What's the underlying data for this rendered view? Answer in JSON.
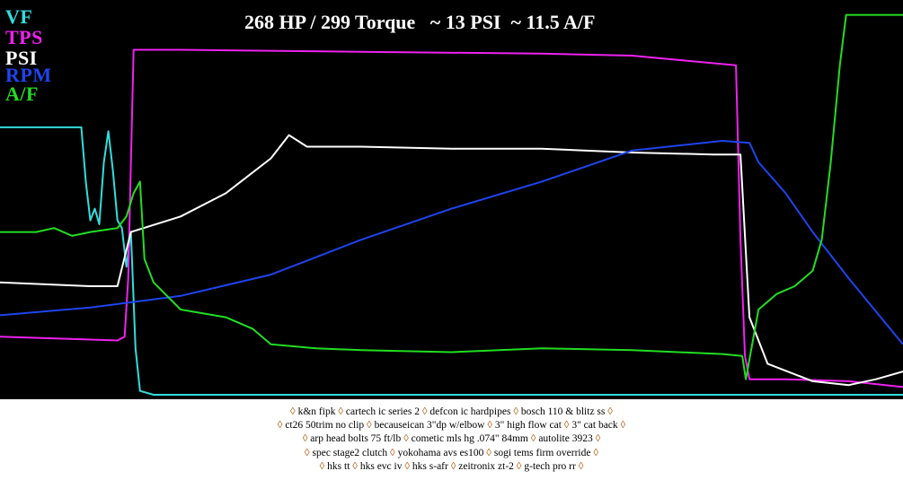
{
  "colors": {
    "background": "#000000",
    "vf": "#33dddd",
    "tps": "#ee22ee",
    "psi": "#ffffff",
    "rpm": "#1f44ee",
    "af": "#22dd22",
    "diamond": "#b5651d"
  },
  "legend": [
    {
      "label": "VF",
      "color": "#33dddd"
    },
    {
      "label": "TPS",
      "color": "#ee22ee"
    },
    {
      "label": "PSI",
      "color": "#ffffff"
    },
    {
      "label": "RPM",
      "color": "#1f44ee"
    },
    {
      "label": "A/F",
      "color": "#22dd22"
    }
  ],
  "chart_data": {
    "type": "line",
    "title": "268 HP / 299 Torque   ~ 13 PSI  ~ 11.5 A/F",
    "xlabel": "",
    "ylabel": "",
    "xlim": [
      0,
      1000
    ],
    "ylim": [
      0,
      100
    ],
    "grid": false,
    "legend_position": "top-left",
    "series": [
      {
        "name": "VF",
        "color": "#33dddd",
        "x": [
          0,
          90,
          95,
          100,
          105,
          110,
          115,
          120,
          125,
          130,
          135,
          140,
          145,
          150,
          155,
          170,
          400,
          700,
          1000
        ],
        "y": [
          69,
          69,
          55,
          45,
          48,
          44,
          60,
          68,
          58,
          45,
          43,
          33,
          42,
          12,
          1,
          0,
          0,
          0,
          0
        ]
      },
      {
        "name": "TPS",
        "color": "#ee22ee",
        "x": [
          0,
          130,
          138,
          142,
          145,
          148,
          200,
          400,
          600,
          700,
          815,
          820,
          825,
          830,
          870,
          940,
          1000
        ],
        "y": [
          15,
          14,
          15,
          30,
          60,
          89,
          89,
          88.5,
          88,
          87.5,
          85,
          40,
          10,
          4,
          4,
          3.5,
          2
        ]
      },
      {
        "name": "PSI",
        "color": "#ffffff",
        "x": [
          0,
          100,
          130,
          145,
          200,
          250,
          300,
          320,
          340,
          400,
          500,
          600,
          700,
          790,
          820,
          830,
          850,
          900,
          940,
          970,
          1000
        ],
        "y": [
          29,
          28,
          28,
          42,
          46,
          52,
          61,
          67,
          64,
          64,
          63.5,
          63.5,
          62.5,
          62,
          62,
          20,
          8,
          3.5,
          2.5,
          4,
          6
        ]
      },
      {
        "name": "RPM",
        "color": "#1f44ee",
        "x": [
          0,
          100,
          200,
          300,
          400,
          500,
          600,
          700,
          800,
          830,
          840,
          870,
          900,
          940,
          1000
        ],
        "y": [
          20.5,
          22.5,
          25.5,
          31,
          40,
          48,
          55,
          63,
          65.5,
          65,
          60,
          52,
          42,
          30,
          13
        ]
      },
      {
        "name": "A/F",
        "color": "#22dd22",
        "x": [
          0,
          40,
          60,
          80,
          100,
          130,
          140,
          148,
          155,
          160,
          170,
          200,
          250,
          280,
          300,
          350,
          400,
          500,
          600,
          700,
          800,
          822,
          826,
          840,
          860,
          880,
          900,
          910,
          920,
          930,
          937,
          1000
        ],
        "y": [
          42,
          42,
          43,
          41,
          42,
          43,
          46,
          52,
          55,
          35,
          29,
          22,
          20,
          17,
          13,
          12,
          11.5,
          11,
          12,
          11.5,
          10.5,
          10,
          4,
          22,
          26,
          28,
          32,
          40,
          60,
          85,
          98,
          98
        ]
      }
    ]
  },
  "mods": [
    [
      "k&n fipk",
      "cartech ic series 2",
      "defcon ic hardpipes",
      "bosch 110 & blitz ss"
    ],
    [
      "ct26 50trim no clip",
      "becauseican 3\"dp w/elbow",
      "3\" high flow cat",
      "3\" cat back"
    ],
    [
      "arp head bolts 75 ft/lb",
      "cometic mls hg .074\" 84mm",
      "autolite 3923"
    ],
    [
      "spec stage2 clutch",
      "yokohama avs es100",
      "sogi tems firm override"
    ],
    [
      "hks tt",
      "hks evc iv",
      "hks s-afr",
      "zeitronix zt-2",
      "g-tech pro rr"
    ]
  ]
}
